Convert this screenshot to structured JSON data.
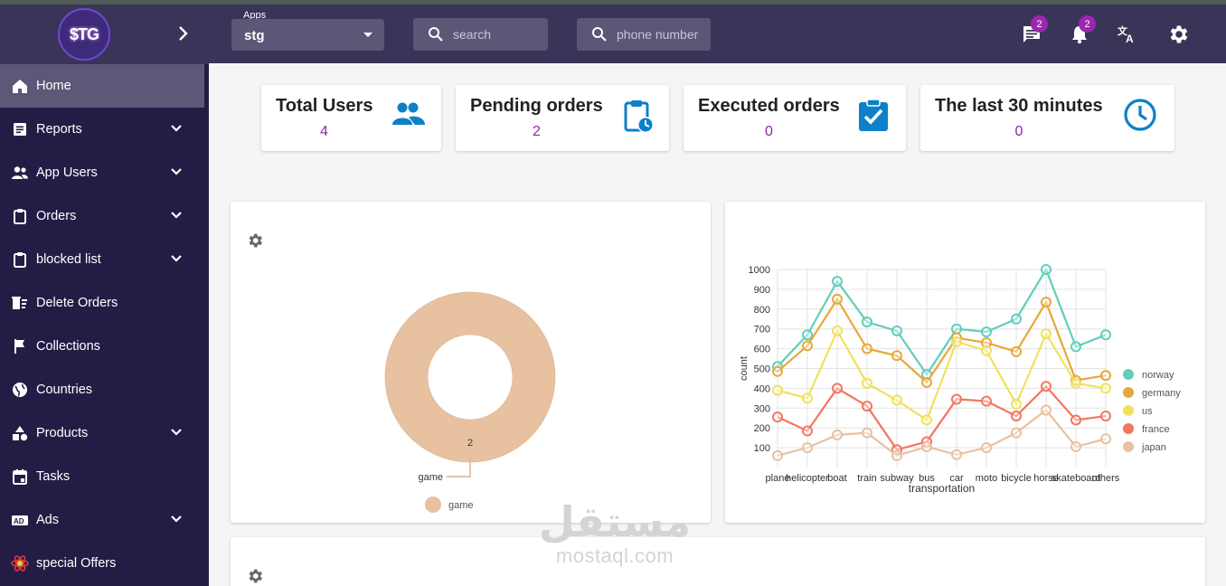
{
  "sidebar": {
    "logo_text": "$TG",
    "items": [
      {
        "label": "Home",
        "icon": "home-icon",
        "expandable": false,
        "active": true
      },
      {
        "label": "Reports",
        "icon": "report-icon",
        "expandable": true
      },
      {
        "label": "App Users",
        "icon": "users-icon",
        "expandable": true
      },
      {
        "label": "Orders",
        "icon": "clipboard-icon",
        "expandable": true
      },
      {
        "label": "blocked list",
        "icon": "clipboard-icon",
        "expandable": true
      },
      {
        "label": "Delete Orders",
        "icon": "delete-sweep-icon",
        "expandable": false
      },
      {
        "label": "Collections",
        "icon": "flag-icon",
        "expandable": false
      },
      {
        "label": "Countries",
        "icon": "globe-icon",
        "expandable": false
      },
      {
        "label": "Products",
        "icon": "shapes-icon",
        "expandable": true
      },
      {
        "label": "Tasks",
        "icon": "calendar-icon",
        "expandable": false
      },
      {
        "label": "Ads",
        "icon": "ad-icon",
        "expandable": true
      },
      {
        "label": "special Offers",
        "icon": "atom-icon",
        "expandable": false
      }
    ]
  },
  "header": {
    "apps_label": "Apps",
    "apps_value": "stg",
    "search_placeholder": "search",
    "phone_placeholder": "phone number",
    "messages_badge": "2",
    "notifications_badge": "2"
  },
  "stats": [
    {
      "title": "Total Users",
      "value": "4",
      "icon": "people-icon"
    },
    {
      "title": "Pending orders",
      "value": "2",
      "icon": "pending-clipboard-icon"
    },
    {
      "title": "Executed orders",
      "value": "0",
      "icon": "check-clipboard-icon"
    },
    {
      "title": "The last 30 minutes",
      "value": "0",
      "icon": "clock-icon"
    }
  ],
  "colors": {
    "accent": "#8e24aa",
    "icon_blue": "#0d80c8",
    "sidebar": "#231d46",
    "header": "#3a3459"
  },
  "watermark": {
    "arabic": "مستقل",
    "latin": "mostaql.com"
  },
  "chart_data": [
    {
      "type": "pie",
      "categories": [
        "game"
      ],
      "values": [
        2
      ],
      "slice_label": "game",
      "legend": [
        "game"
      ],
      "colors": [
        "#e8c1a0"
      ]
    },
    {
      "type": "line",
      "xlabel": "transportation",
      "ylabel": "count",
      "categories": [
        "plane",
        "helicopter",
        "boat",
        "train",
        "subway",
        "bus",
        "car",
        "moto",
        "bicycle",
        "horse",
        "skateboard",
        "others"
      ],
      "yticks": [
        100,
        200,
        300,
        400,
        500,
        600,
        700,
        800,
        900,
        1000
      ],
      "ylim": [
        0,
        1000
      ],
      "legend_position": "right",
      "series": [
        {
          "name": "norway",
          "color": "#61cdbb",
          "values": [
            510,
            670,
            940,
            735,
            690,
            470,
            700,
            685,
            750,
            1000,
            610,
            670
          ]
        },
        {
          "name": "germany",
          "color": "#e8a838",
          "values": [
            485,
            615,
            850,
            600,
            565,
            430,
            655,
            630,
            585,
            835,
            440,
            465
          ]
        },
        {
          "name": "us",
          "color": "#f1e15b",
          "values": [
            390,
            350,
            690,
            425,
            340,
            240,
            635,
            590,
            320,
            675,
            425,
            400
          ]
        },
        {
          "name": "france",
          "color": "#f47560",
          "values": [
            255,
            185,
            400,
            310,
            90,
            130,
            345,
            335,
            260,
            410,
            240,
            260
          ]
        },
        {
          "name": "japan",
          "color": "#e8c1a0",
          "values": [
            60,
            100,
            165,
            175,
            60,
            105,
            65,
            100,
            175,
            290,
            105,
            145
          ]
        }
      ]
    }
  ]
}
